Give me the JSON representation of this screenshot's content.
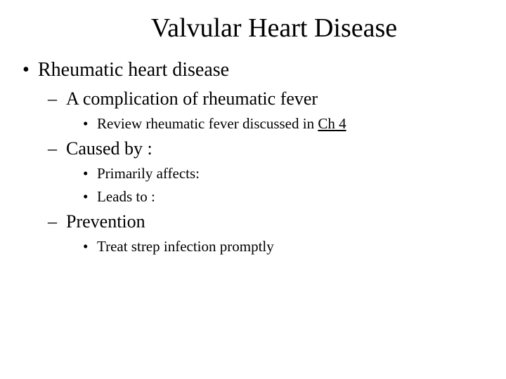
{
  "title": "Valvular Heart Disease",
  "bullets": {
    "l1_0": "Rheumatic heart disease",
    "l2_0": "A complication of rheumatic fever",
    "l3_0a": "Review rheumatic fever discussed in ",
    "l3_0b": "Ch 4",
    "l2_1": "Caused by :",
    "l3_1": "Primarily affects:",
    "l3_2": "Leads to :",
    "l2_2": "Prevention",
    "l3_3": "Treat strep infection promptly"
  },
  "colors": {
    "background": "#ffffff",
    "text": "#000000"
  },
  "fonts": {
    "family": "Times New Roman",
    "title_size_pt": 38,
    "level1_size_pt": 28,
    "level2_size_pt": 26,
    "level3_size_pt": 21
  }
}
